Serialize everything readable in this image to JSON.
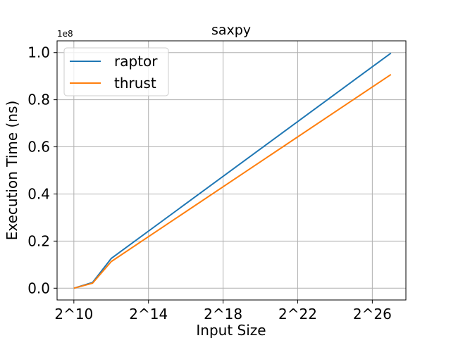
{
  "chart_data": {
    "type": "line",
    "title": "saxpy",
    "xlabel": "Input Size",
    "ylabel": "Execution Time (ns)",
    "y_offset_label": "1e8",
    "x_scale": "log2",
    "x_ticks": [
      {
        "exp": 10,
        "label": "2^10"
      },
      {
        "exp": 14,
        "label": "2^14"
      },
      {
        "exp": 18,
        "label": "2^18"
      },
      {
        "exp": 22,
        "label": "2^22"
      },
      {
        "exp": 26,
        "label": "2^26"
      }
    ],
    "y_ticks": [
      {
        "value": 0.0,
        "label": "0.0"
      },
      {
        "value": 0.2,
        "label": "0.2"
      },
      {
        "value": 0.4,
        "label": "0.4"
      },
      {
        "value": 0.6,
        "label": "0.6"
      },
      {
        "value": 0.8,
        "label": "0.8"
      },
      {
        "value": 1.0,
        "label": "1.0"
      }
    ],
    "xlim_exp": [
      9.1,
      27.8
    ],
    "ylim": [
      -0.05,
      1.05
    ],
    "grid": true,
    "legend_position": "upper-left",
    "x_exp": [
      10,
      11,
      12,
      27
    ],
    "series": [
      {
        "name": "raptor",
        "color": "#1f77b4",
        "values": [
          0.0,
          0.024,
          0.126,
          0.998
        ]
      },
      {
        "name": "thrust",
        "color": "#ff7f0e",
        "values": [
          0.0,
          0.021,
          0.113,
          0.907
        ]
      }
    ]
  }
}
